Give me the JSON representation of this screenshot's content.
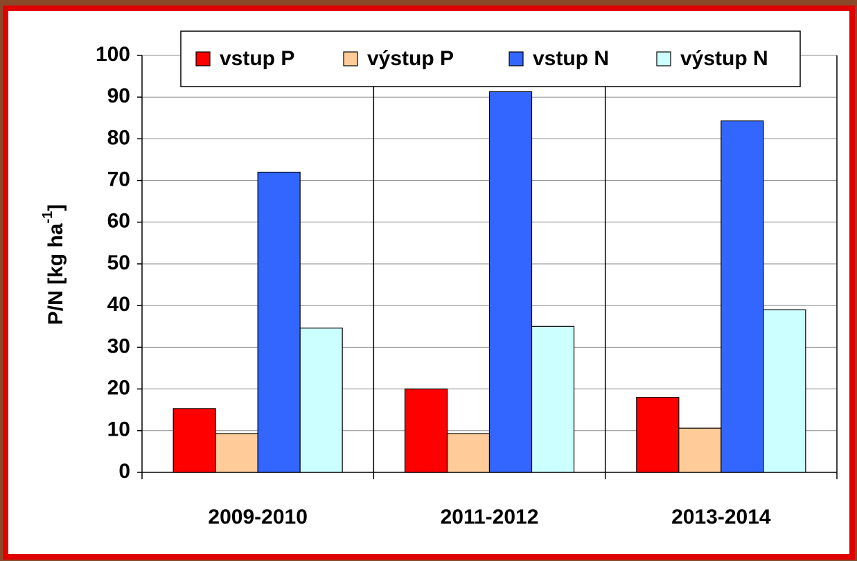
{
  "chart_data": {
    "type": "bar",
    "ylabel": {
      "text": "P/N [kg ha",
      "superscript": "-1",
      "suffix": "]"
    },
    "categories": [
      "2009-2010",
      "2011-2012",
      "2013-2014"
    ],
    "series": [
      {
        "name": "vstup P",
        "color": "#ff0000",
        "values": [
          15.3,
          20,
          18
        ]
      },
      {
        "name": "výstup P",
        "color": "#ffcc99",
        "values": [
          9.3,
          9.3,
          10.6
        ]
      },
      {
        "name": "vstup N",
        "color": "#3366ff",
        "values": [
          72,
          91.3,
          84.3
        ]
      },
      {
        "name": "výstup N",
        "color": "#ccffff",
        "values": [
          34.6,
          35,
          39
        ]
      }
    ],
    "ylim": [
      0,
      100
    ],
    "yticks": [
      0,
      10,
      20,
      30,
      40,
      50,
      60,
      70,
      80,
      90,
      100
    ],
    "grid": true,
    "legend": "top"
  }
}
